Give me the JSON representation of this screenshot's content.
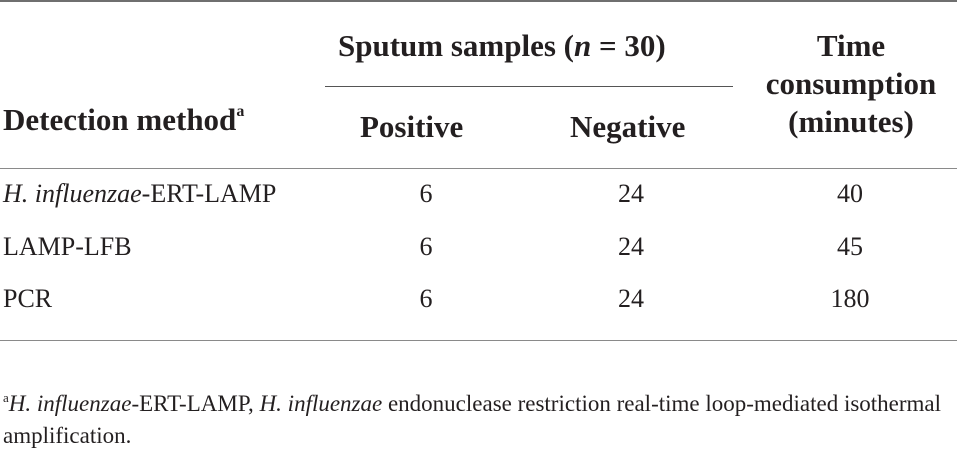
{
  "table": {
    "header": {
      "method_label": "Detection method",
      "method_marker": "a",
      "group_label_prefix": "Sputum samples (",
      "group_label_var": "n",
      "group_label_suffix": " = 30)",
      "positive": "Positive",
      "negative": "Negative",
      "time_line1": "Time",
      "time_line2": "consumption",
      "time_line3": "(minutes)"
    },
    "rows": [
      {
        "method_italic": "H. influenzae",
        "method_rest": "-ERT-LAMP",
        "positive": "6",
        "negative": "24",
        "time": "40"
      },
      {
        "method_italic": "",
        "method_rest": "LAMP-LFB",
        "positive": "6",
        "negative": "24",
        "time": "45"
      },
      {
        "method_italic": "",
        "method_rest": "PCR",
        "positive": "6",
        "negative": "24",
        "time": "180"
      }
    ],
    "footnote": {
      "marker": "a",
      "part1_italic": "H. influenzae",
      "part2": "-ERT-LAMP, ",
      "part3_italic": "H. influenzae",
      "part4": " endonuclease restriction real-time loop-mediated isothermal amplification."
    }
  }
}
